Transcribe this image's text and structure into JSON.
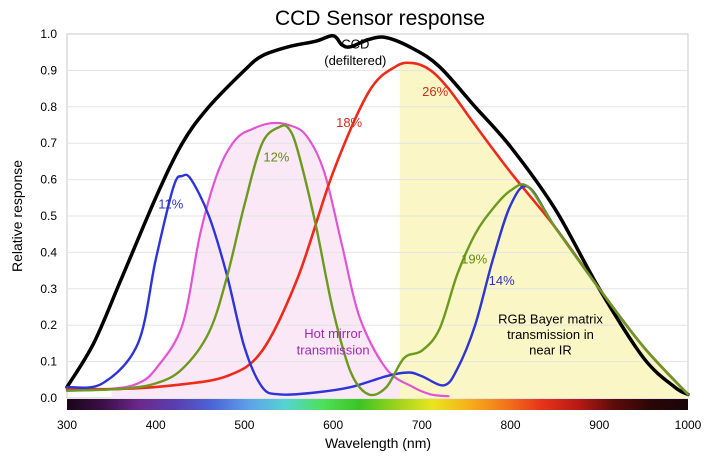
{
  "chart_data": {
    "type": "line",
    "title": "CCD Sensor response",
    "xlabel": "Wavelength (nm)",
    "ylabel": "Relative response",
    "xlim": [
      300,
      1000
    ],
    "ylim": [
      0,
      1.0
    ],
    "x_ticks": [
      300,
      400,
      500,
      600,
      700,
      800,
      900,
      1000
    ],
    "x_tick_labels": [
      "300",
      "400",
      "500",
      "600",
      "700",
      "800",
      "900",
      "1000"
    ],
    "y_ticks": [
      0,
      0.1,
      0.2,
      0.3,
      0.4,
      0.5,
      0.6,
      0.7,
      0.8,
      0.9,
      1.0
    ],
    "y_tick_labels": [
      "0.0",
      "0.1",
      "0.2",
      "0.3",
      "0.4",
      "0.5",
      "0.6",
      "0.7",
      "0.8",
      "0.9",
      "1.0"
    ],
    "regions": [
      {
        "name": "Hot mirror transmission",
        "x_range": [
          350,
          730
        ],
        "color": "#fbe8f6"
      },
      {
        "name": "RGB Bayer matrix transmission in near IR",
        "x_range": [
          675,
          1000
        ],
        "color": "#fbf6c6"
      }
    ],
    "series": [
      {
        "name": "CCD (defiltered)",
        "color": "#000000",
        "width": 3.5,
        "x": [
          300,
          330,
          360,
          400,
          430,
          460,
          500,
          520,
          550,
          580,
          600,
          610,
          620,
          640,
          660,
          690,
          720,
          760,
          800,
          850,
          900,
          950,
          985,
          1000
        ],
        "y": [
          0.03,
          0.15,
          0.32,
          0.55,
          0.7,
          0.8,
          0.9,
          0.94,
          0.965,
          0.98,
          0.995,
          0.97,
          0.965,
          0.985,
          0.99,
          0.96,
          0.91,
          0.8,
          0.69,
          0.52,
          0.3,
          0.11,
          0.03,
          0.01
        ]
      },
      {
        "name": "Hot mirror transmission",
        "color": "#e055d3",
        "width": 2.2,
        "x": [
          300,
          350,
          380,
          400,
          430,
          450,
          470,
          490,
          510,
          530,
          550,
          570,
          590,
          610,
          630,
          660,
          690,
          710,
          730
        ],
        "y": [
          0.02,
          0.025,
          0.04,
          0.08,
          0.2,
          0.45,
          0.62,
          0.71,
          0.74,
          0.755,
          0.75,
          0.72,
          0.62,
          0.42,
          0.22,
          0.08,
          0.03,
          0.01,
          0.005
        ]
      },
      {
        "name": "Red",
        "color": "#ee2a1b",
        "width": 2.6,
        "x": [
          300,
          360,
          420,
          480,
          520,
          560,
          600,
          640,
          670,
          690,
          710,
          730,
          760,
          800,
          850,
          900,
          950,
          1000
        ],
        "y": [
          0.025,
          0.025,
          0.035,
          0.06,
          0.13,
          0.33,
          0.62,
          0.84,
          0.91,
          0.92,
          0.9,
          0.85,
          0.75,
          0.62,
          0.47,
          0.3,
          0.14,
          0.01
        ]
      },
      {
        "name": "Blue",
        "color": "#2d35d6",
        "width": 2.4,
        "x": [
          300,
          340,
          380,
          400,
          420,
          430,
          440,
          460,
          480,
          500,
          520,
          540,
          580,
          620,
          660,
          685,
          700,
          725,
          740,
          760,
          780,
          800,
          820,
          850,
          900,
          950,
          1000
        ],
        "y": [
          0.03,
          0.04,
          0.15,
          0.38,
          0.58,
          0.61,
          0.6,
          0.5,
          0.34,
          0.14,
          0.03,
          0.01,
          0.015,
          0.03,
          0.06,
          0.07,
          0.06,
          0.035,
          0.08,
          0.2,
          0.38,
          0.53,
          0.58,
          0.47,
          0.3,
          0.14,
          0.01
        ]
      },
      {
        "name": "Green",
        "color": "#6b9a1f",
        "width": 2.4,
        "x": [
          300,
          360,
          400,
          430,
          460,
          480,
          500,
          520,
          540,
          550,
          560,
          580,
          600,
          620,
          640,
          660,
          680,
          700,
          720,
          740,
          760,
          780,
          800,
          820,
          850,
          900,
          950,
          1000
        ],
        "y": [
          0.02,
          0.025,
          0.04,
          0.08,
          0.18,
          0.33,
          0.53,
          0.7,
          0.745,
          0.74,
          0.68,
          0.48,
          0.24,
          0.07,
          0.01,
          0.03,
          0.11,
          0.13,
          0.19,
          0.34,
          0.45,
          0.52,
          0.57,
          0.58,
          0.47,
          0.3,
          0.14,
          0.01
        ]
      }
    ],
    "annotations": [
      {
        "text": "CCD",
        "x": 625,
        "y": 0.96,
        "color": "#000000"
      },
      {
        "text": "(defiltered)",
        "x": 625,
        "y": 0.915,
        "color": "#000000"
      },
      {
        "text": "26%",
        "x": 715,
        "y": 0.83,
        "color": "#d12b1d"
      },
      {
        "text": "18%",
        "x": 618,
        "y": 0.745,
        "color": "#d12b1d"
      },
      {
        "text": "12%",
        "x": 536,
        "y": 0.65,
        "color": "#5e8c16"
      },
      {
        "text": "11%",
        "x": 417,
        "y": 0.52,
        "color": "#2b33cc"
      },
      {
        "text": "19%",
        "x": 759,
        "y": 0.37,
        "color": "#5e8c16"
      },
      {
        "text": "14%",
        "x": 790,
        "y": 0.31,
        "color": "#2b33cc"
      },
      {
        "text": "Hot mirror",
        "x": 600,
        "y": 0.165,
        "color": "#a028b8"
      },
      {
        "text": "transmission",
        "x": 600,
        "y": 0.12,
        "color": "#a028b8"
      },
      {
        "text": "RGB Bayer matrix",
        "x": 845,
        "y": 0.205,
        "color": "#000000"
      },
      {
        "text": "transmission in",
        "x": 845,
        "y": 0.162,
        "color": "#000000"
      },
      {
        "text": "near IR",
        "x": 845,
        "y": 0.119,
        "color": "#000000"
      }
    ],
    "spectrum_colors": [
      "#1a0418",
      "#3d0f4a",
      "#6b2a8e",
      "#5a3fb0",
      "#4b66d8",
      "#5fa2e8",
      "#55d4d0",
      "#4ee05a",
      "#3ec324",
      "#9ad21c",
      "#e8e61e",
      "#f6b01a",
      "#f3761a",
      "#e8321a",
      "#b51a14",
      "#5a0c0a",
      "#2a0608",
      "#1a0608"
    ]
  }
}
